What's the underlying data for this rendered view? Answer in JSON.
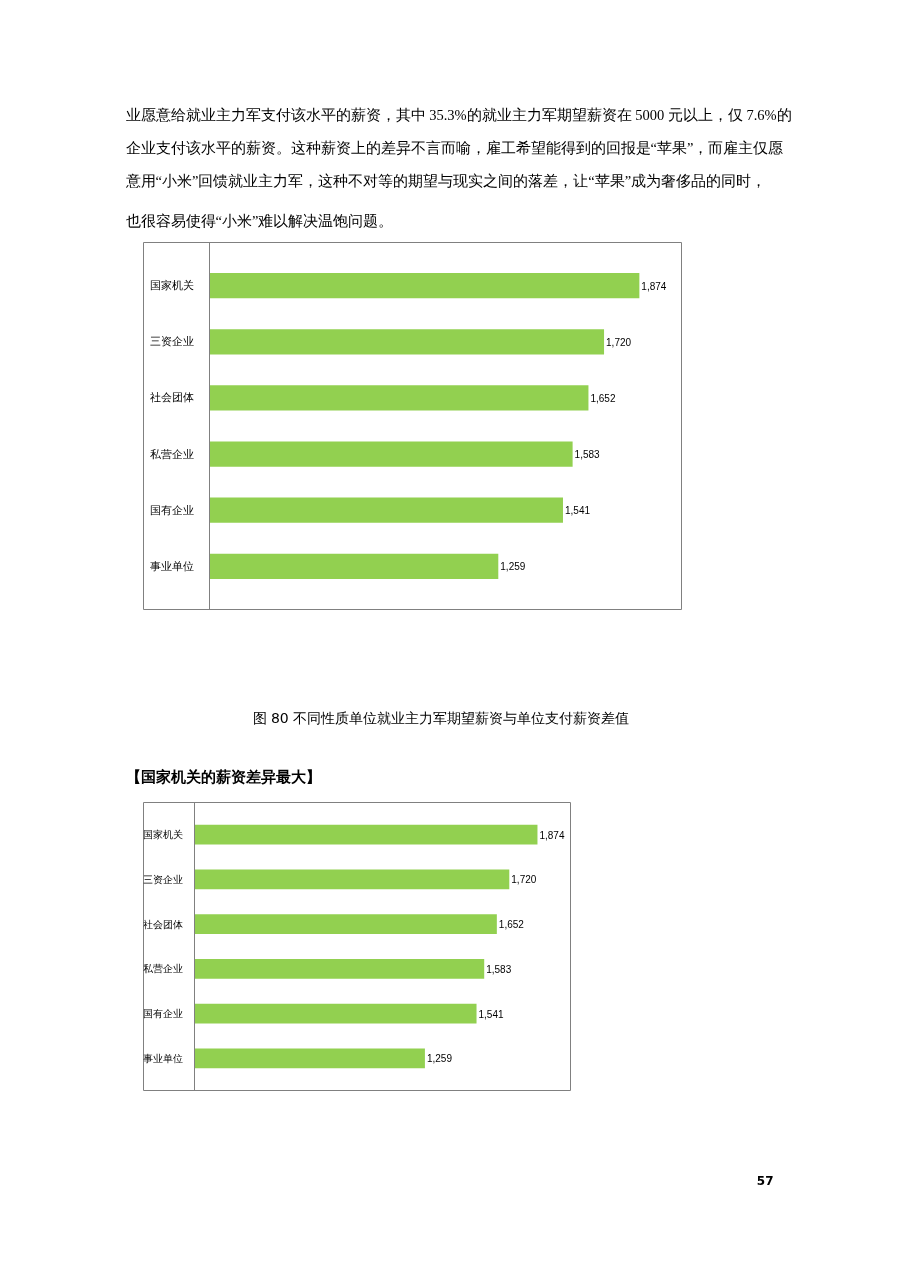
{
  "chart_data": [
    {
      "type": "bar",
      "orientation": "horizontal",
      "title": "图 80 不同性质单位就业主力军期望薪资与单位支付薪资差值",
      "annotations": [
        "业愿意给就业主力军支付该水平的薪资，其中 35.3%的就业主力军期望薪资在 5000 元以上，仅 7.6%的",
        "企业支付该水平的薪资。这种薪资上的差异不言而喻，雇工希望能得到的回报是“苹果”，而雇主仅愿",
        "意用“小米”回馈就业主力军，这种不对等的期望与现实之间的落差，让“苹果”成为奢侈品的同时，",
        "也很容易使得“小米”难以解决温饱问题。"
      ],
      "categories": [
        "国家机关",
        "三资企业",
        "社会团体",
        "私营企业",
        "国有企业",
        "事业单位"
      ],
      "values": [
        1874,
        1720,
        1652,
        1583,
        1541,
        1259
      ],
      "color": "#92d050",
      "value_labels": [
        "1,874",
        "1,720",
        "1,652",
        "1,583",
        "1,541",
        "1,259"
      ]
    },
    {
      "type": "bar",
      "orientation": "horizontal",
      "title": "【国家机关的薪资差异最大】",
      "annotations": [
        "57"
      ],
      "categories": [
        "国家机关",
        "三资企业",
        "社会团体",
        "私营企业",
        "国有企业",
        "事业单位"
      ],
      "values": [
        1874,
        1720,
        1652,
        1583,
        1541,
        1259
      ],
      "color": "#92d050",
      "value_labels": [
        "1,874",
        "1,720",
        "1,652",
        "1,583",
        "1,541",
        "1,259"
      ]
    }
  ]
}
